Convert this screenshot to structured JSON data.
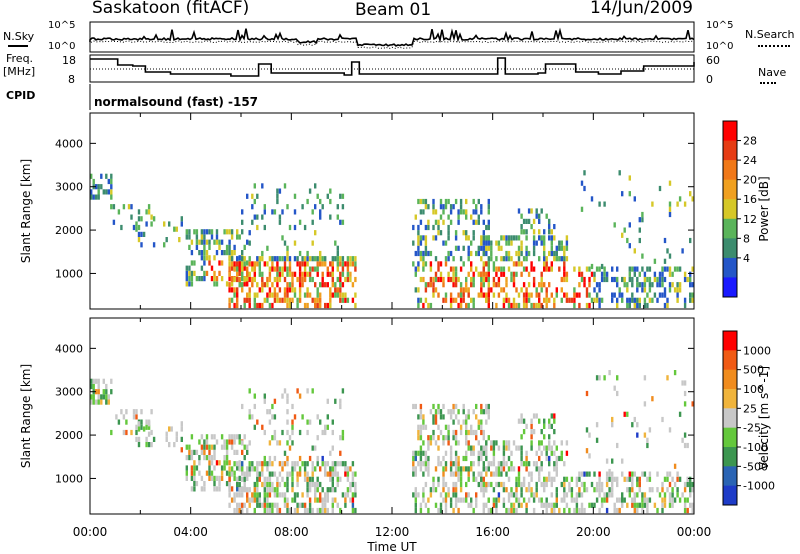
{
  "header": {
    "station": "Saskatoon (fitACF)",
    "beam": "Beam 01",
    "date": "14/Jun/2009"
  },
  "top_panels": {
    "nsky_label": "N.Sky",
    "nsky_tick_hi": "10^5",
    "nsky_tick_lo": "10^0",
    "nsearch_label": "N.Search",
    "nsearch_tick_hi": "10^5",
    "nsearch_tick_lo": "10^0",
    "freq_label_1": "Freq.",
    "freq_label_2": "[MHz]",
    "freq_ticks": [
      "18",
      "8"
    ],
    "nave_label": "Nave",
    "nave_ticks": [
      "60",
      "0"
    ],
    "cpid_label": "CPID",
    "cpid_text": "normalsound (fast) -157"
  },
  "chart_data": [
    {
      "type": "heatmap",
      "name": "power",
      "ylabel": "Slant Range [km]",
      "yticks": [
        1000,
        2000,
        3000,
        4000
      ],
      "ylim": [
        180,
        4700
      ],
      "xlim": [
        0,
        24
      ],
      "colorbar_label": "Power [dB]",
      "colorbar_ticks": [
        "28",
        "24",
        "20",
        "16",
        "12",
        "8",
        "4"
      ],
      "colors": [
        "#1a1aff",
        "#2456c8",
        "#3c8c6e",
        "#5ab45a",
        "#d6c828",
        "#f0a020",
        "#f07818",
        "#e63c14",
        "#ff0000"
      ],
      "gap_hours": [
        10.6,
        12.8
      ]
    },
    {
      "type": "heatmap",
      "name": "velocity",
      "ylabel": "Slant Range [km]",
      "yticks": [
        1000,
        2000,
        3000,
        4000
      ],
      "ylim": [
        180,
        4700
      ],
      "xlim": [
        0,
        24
      ],
      "xlabel": "Time UT",
      "xticks": [
        "00:00",
        "04:00",
        "08:00",
        "12:00",
        "16:00",
        "20:00",
        "00:00"
      ],
      "colorbar_label": "Velocity [m s^-1]",
      "colorbar_ticks": [
        "1000",
        "500",
        "100",
        "25",
        "-25",
        "-100",
        "-500",
        "-1000"
      ],
      "colors": [
        "#1e3cc8",
        "#2a64b4",
        "#3c9650",
        "#64c83c",
        "#c8c8c8",
        "#f0b43c",
        "#f08c1e",
        "#f05a14",
        "#ff0000"
      ],
      "gap_hours": [
        10.6,
        12.8
      ]
    }
  ]
}
